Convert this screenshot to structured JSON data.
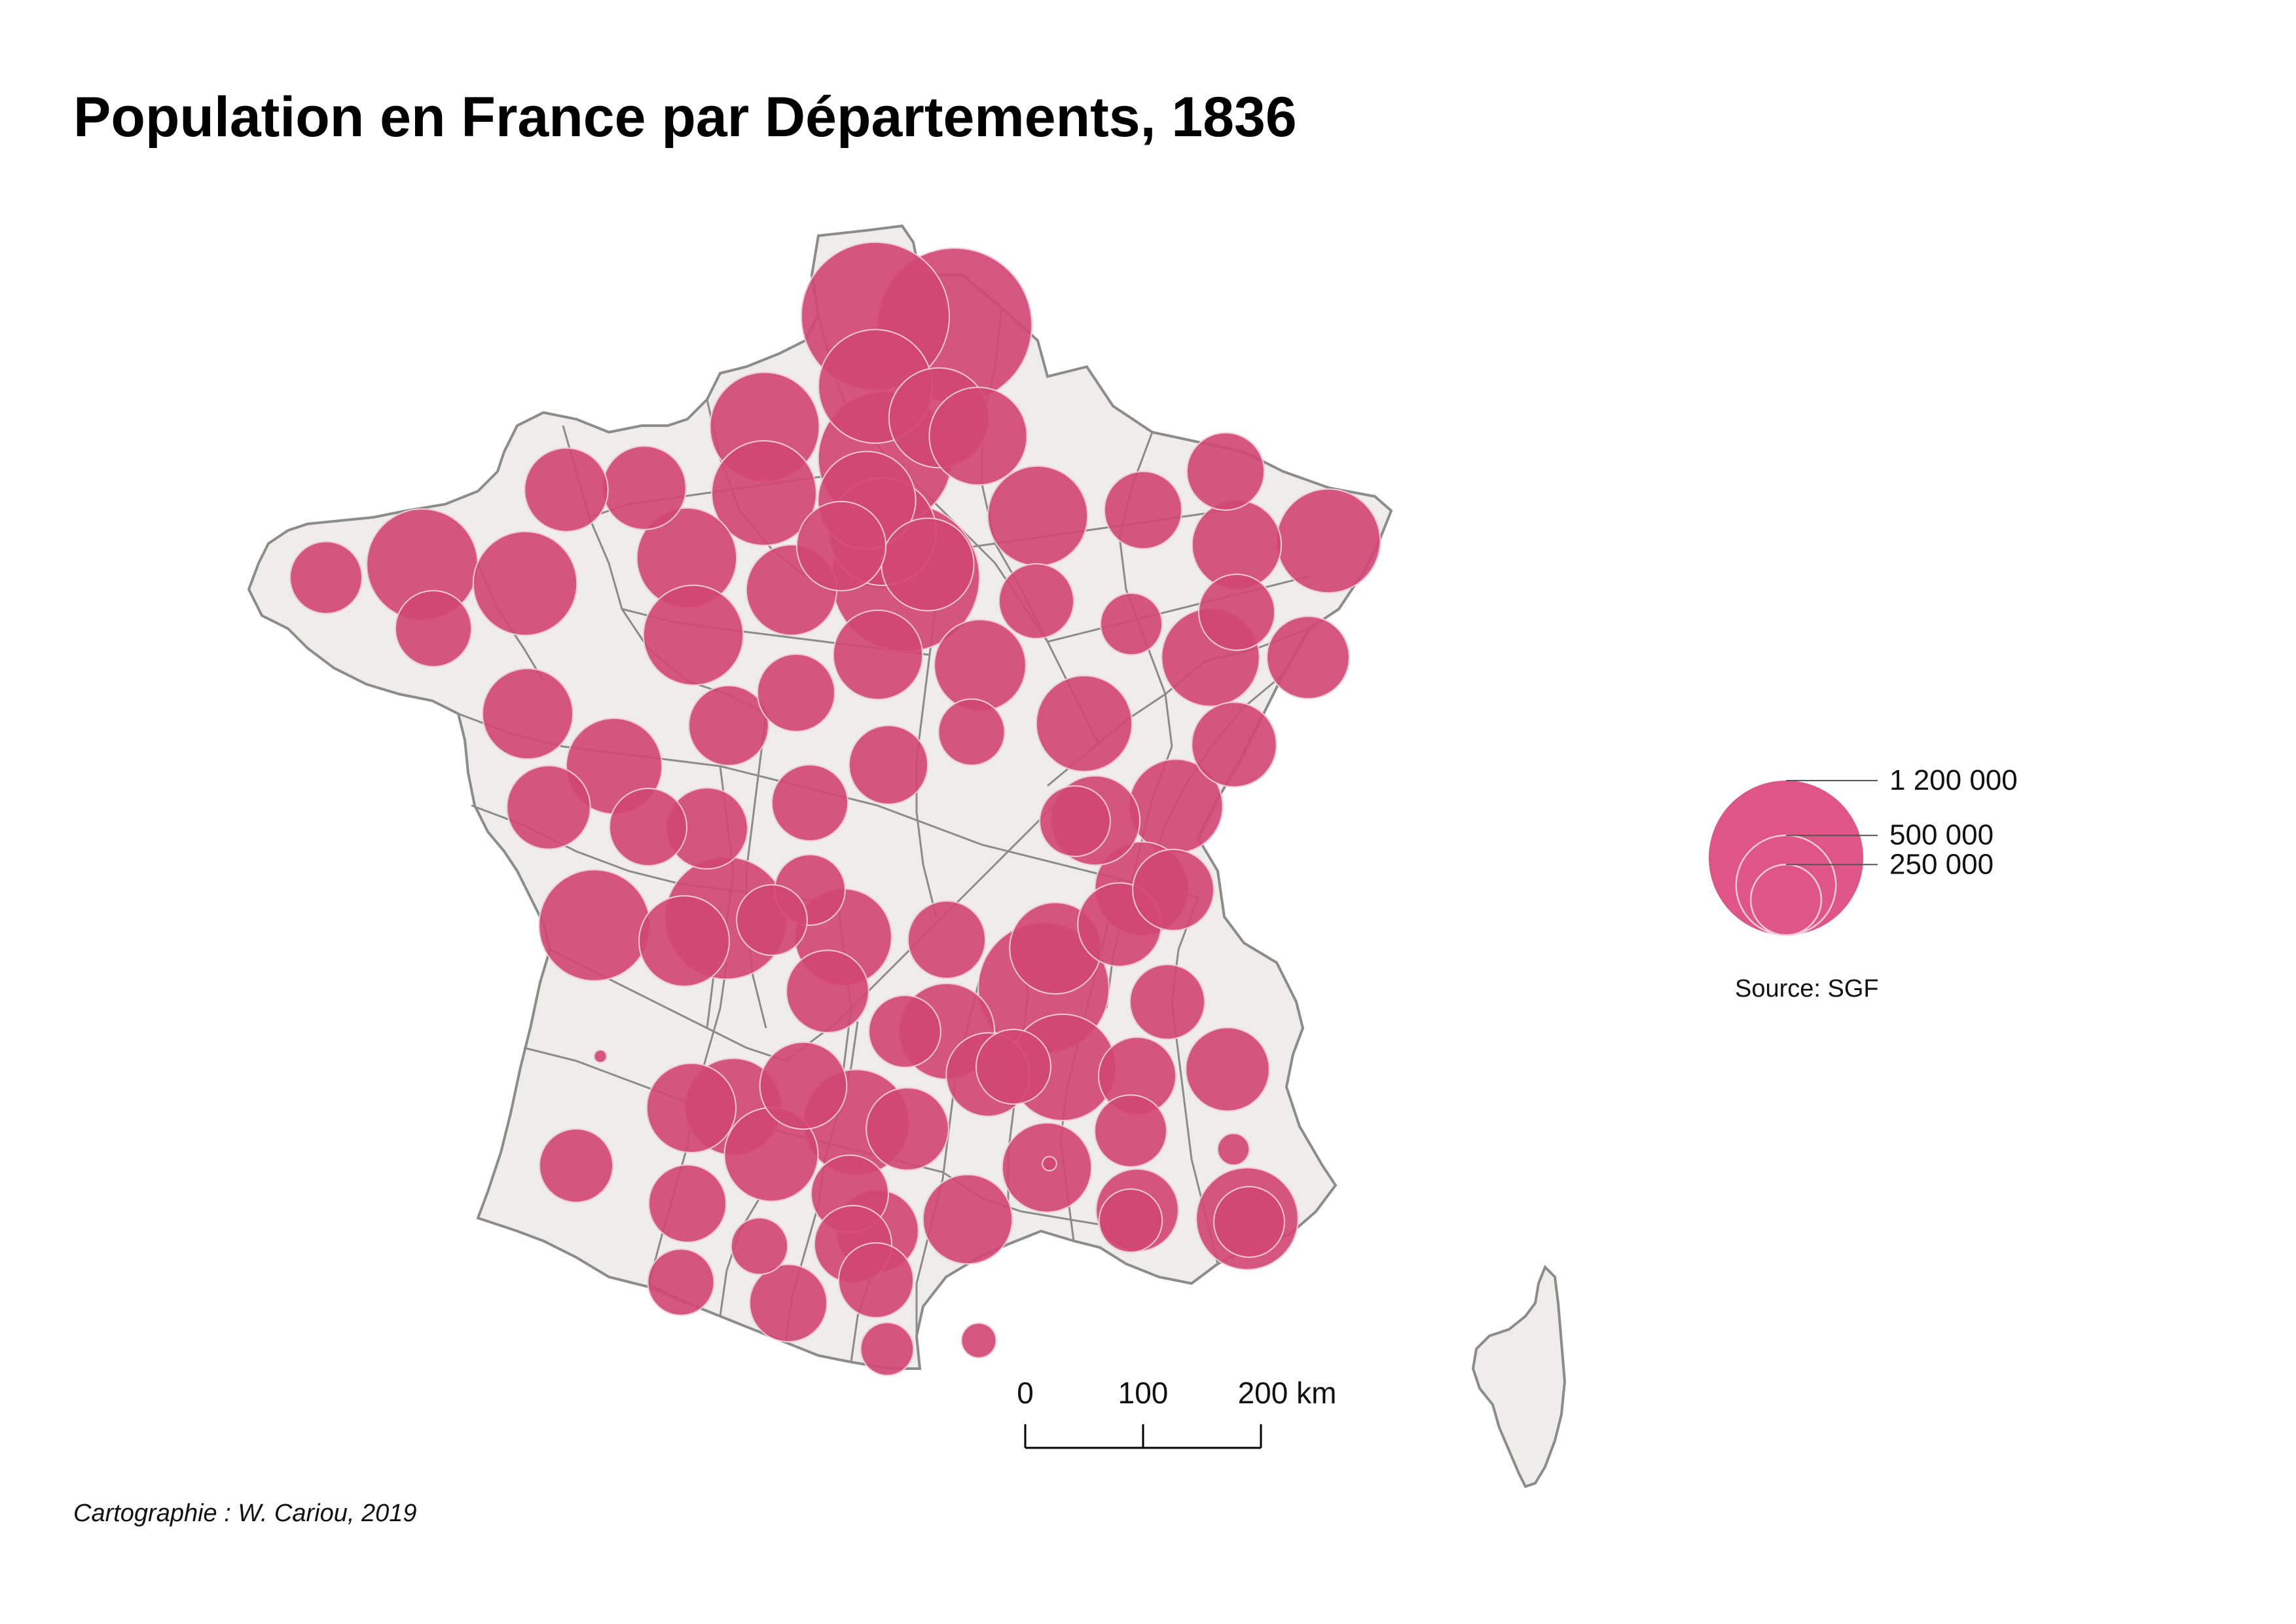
{
  "title": "Population en France par Départements, 1836",
  "credit": "Cartographie : W. Cariou, 2019",
  "legend": {
    "values": [
      {
        "value": 1200000,
        "label": "1 200 000"
      },
      {
        "value": 500000,
        "label": "500 000"
      },
      {
        "value": 250000,
        "label": "250 000"
      }
    ],
    "source": "Source: SGF"
  },
  "scale_bar": {
    "labels": [
      "0",
      "100",
      "200 km"
    ],
    "km": [
      0,
      100,
      200
    ]
  },
  "colors": {
    "land": "#efedea",
    "border": "#8c8c8c",
    "symbol": "#d14874",
    "symbol_light": "#df5585"
  },
  "symbols_population": [
    1100000,
    1200000,
    650000,
    900000,
    600000,
    550000,
    580000,
    430000,
    480000,
    500000,
    480000,
    400000,
    1100000,
    350000,
    350000,
    500000,
    500000,
    540000,
    620000,
    410000,
    400000,
    300000,
    420000,
    500000,
    460000,
    280000,
    300000,
    300000,
    400000,
    540000,
    290000,
    190000,
    340000,
    480000,
    360000,
    440000,
    440000,
    400000,
    220000,
    310000,
    290000,
    320000,
    300000,
    460000,
    410000,
    290000,
    260000,
    350000,
    330000,
    250000,
    250000,
    750000,
    470000,
    300000,
    420000,
    350000,
    280000,
    340000,
    860000,
    460000,
    570000,
    330000,
    620000,
    410000,
    250000,
    260000,
    280000,
    470000,
    560000,
    350000,
    300000,
    260000,
    8000,
    380000,
    340000,
    300000,
    400000,
    340000,
    250000,
    10000,
    50000,
    350000,
    300000,
    270000,
    440000,
    300000,
    340000,
    400000,
    400000,
    200000,
    520000,
    160000,
    220000,
    300000,
    280000,
    60000,
    140000
  ]
}
